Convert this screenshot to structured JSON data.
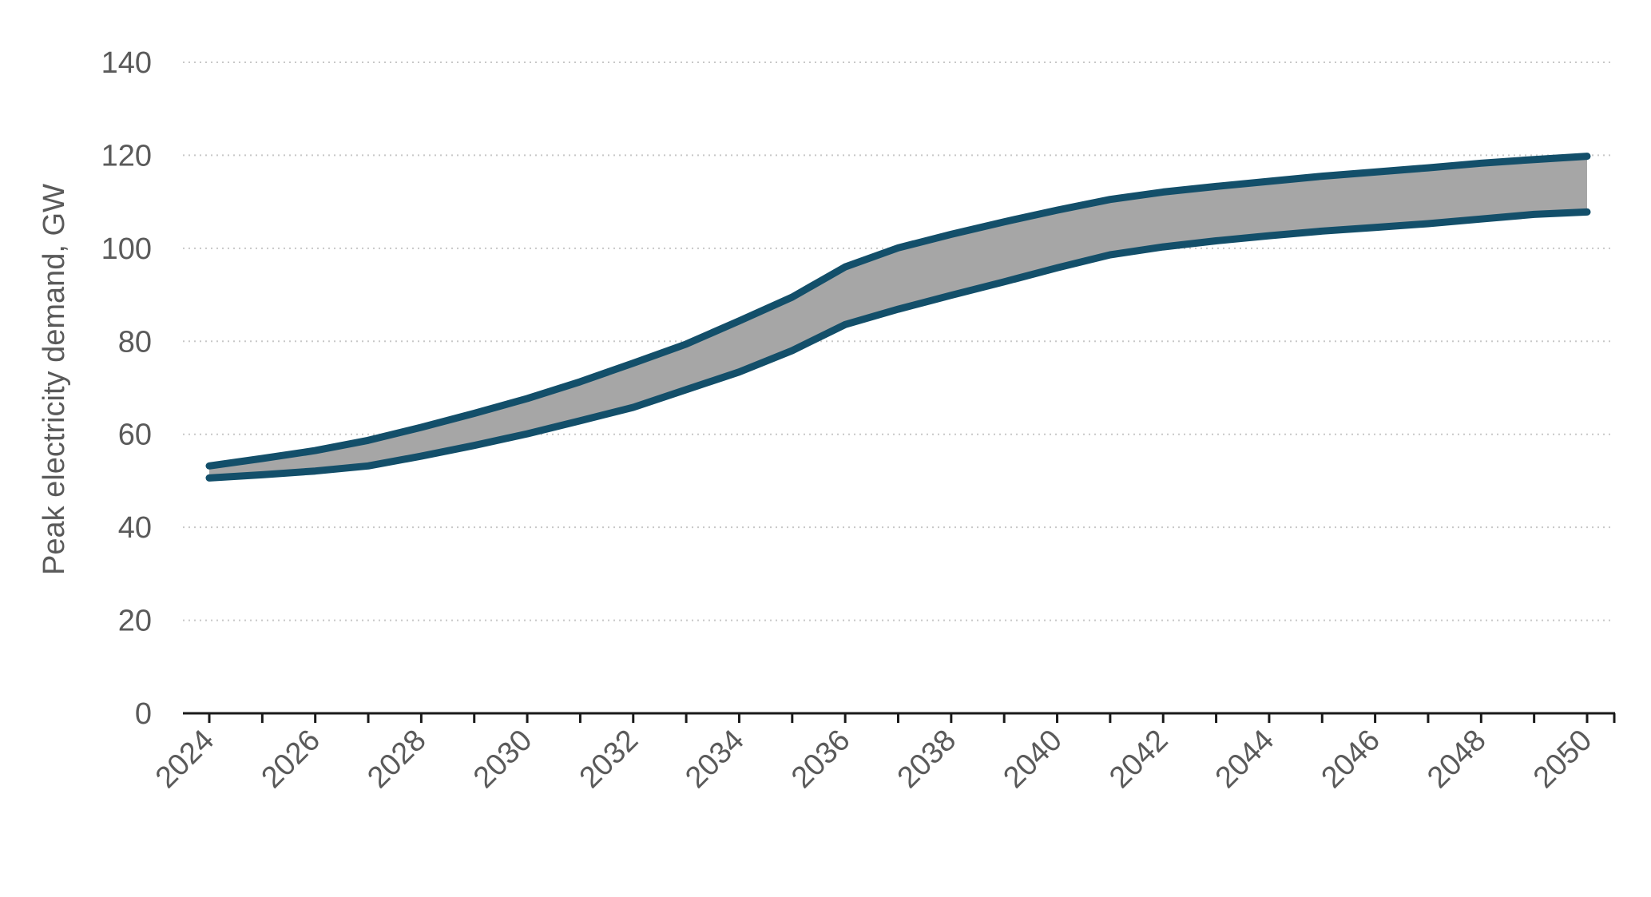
{
  "chart_data": {
    "type": "area",
    "title": "",
    "xlabel": "",
    "ylabel": "Peak electricity demand, GW",
    "xlim": [
      2024,
      2050
    ],
    "ylim": [
      0,
      140
    ],
    "y_ticks": [
      "0",
      "20",
      "40",
      "60",
      "80",
      "100",
      "120",
      "140"
    ],
    "x_tick_labels": [
      "2024",
      "2026",
      "2028",
      "2030",
      "2032",
      "2034",
      "2036",
      "2038",
      "2040",
      "2042",
      "2044",
      "2046",
      "2048",
      "2050"
    ],
    "grid": true,
    "legend": "none",
    "x": [
      2024,
      2025,
      2026,
      2027,
      2028,
      2029,
      2030,
      2031,
      2032,
      2033,
      2034,
      2035,
      2036,
      2037,
      2038,
      2039,
      2040,
      2041,
      2042,
      2043,
      2044,
      2045,
      2046,
      2047,
      2048,
      2049,
      2050
    ],
    "series": [
      {
        "values": [
          53.2,
          54.8,
          56.5,
          58.7,
          61.5,
          64.5,
          67.7,
          71.3,
          75.3,
          79.4,
          84.4,
          89.5,
          96.0,
          100.1,
          103.0,
          105.7,
          108.2,
          110.5,
          112.1,
          113.3,
          114.4,
          115.5,
          116.4,
          117.3,
          118.3,
          119.1,
          119.8
        ]
      },
      {
        "values": [
          50.6,
          51.3,
          52.1,
          53.2,
          55.3,
          57.6,
          60.1,
          62.9,
          65.8,
          69.6,
          73.4,
          78.0,
          83.6,
          86.9,
          89.9,
          92.8,
          95.8,
          98.6,
          100.3,
          101.6,
          102.7,
          103.7,
          104.5,
          105.3,
          106.3,
          107.3,
          107.8
        ]
      }
    ],
    "colors": {
      "line": "#134f6a",
      "band_fill": "#a6a6a6",
      "axis": "#1a1a1a",
      "text": "#5a5a5a",
      "grid": "#c8c8c8"
    }
  }
}
